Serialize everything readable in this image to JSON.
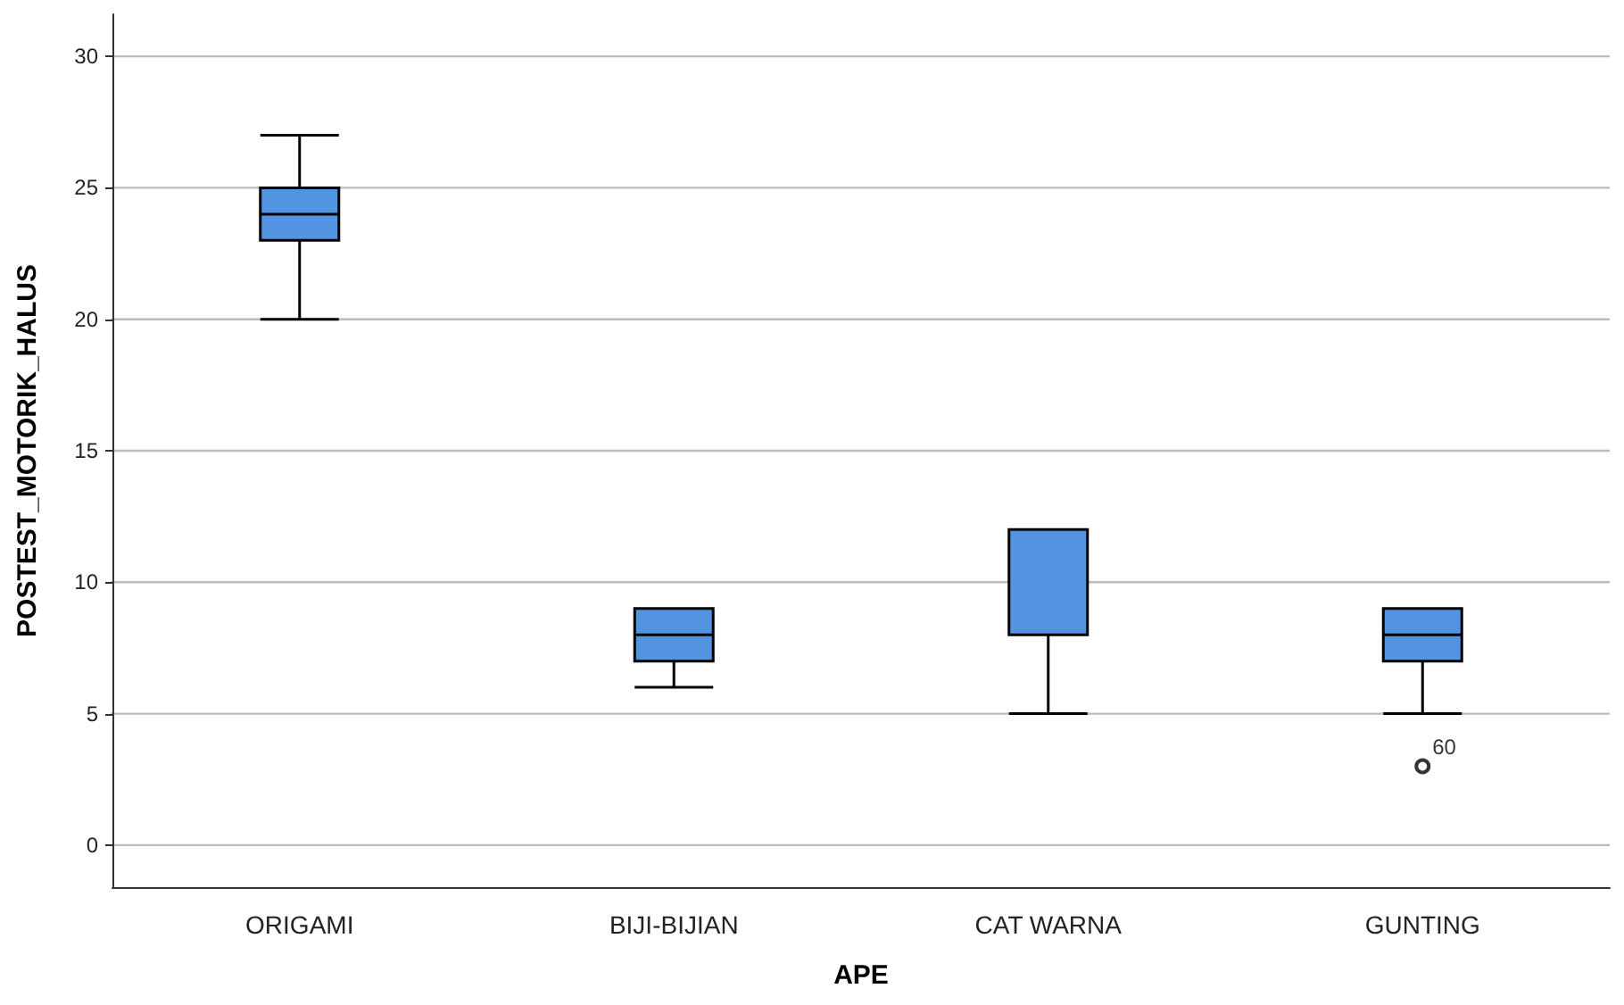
{
  "chart_data": {
    "type": "box",
    "xlabel": "APE",
    "ylabel": "POSTEST_MOTORIK_HALUS",
    "categories": [
      "ORIGAMI",
      "BIJI-BIJIAN",
      "CAT WARNA",
      "GUNTING"
    ],
    "boxes": [
      {
        "low": 20,
        "q1": 23,
        "median": 24,
        "q3": 25,
        "high": 27
      },
      {
        "low": 6,
        "q1": 7,
        "median": 8,
        "q3": 9,
        "high": 9
      },
      {
        "low": 5,
        "q1": 8,
        "median": 12,
        "q3": 12,
        "high": 12
      },
      {
        "low": 5,
        "q1": 7,
        "median": 8,
        "q3": 9,
        "high": 9,
        "outliers": [
          3
        ]
      }
    ],
    "color": "#5294e2",
    "ylim": [
      -1.6,
      31.6
    ],
    "yticks": [
      0,
      5,
      10,
      15,
      20,
      25,
      30
    ],
    "grid": "y",
    "annotations": [
      "60"
    ]
  }
}
